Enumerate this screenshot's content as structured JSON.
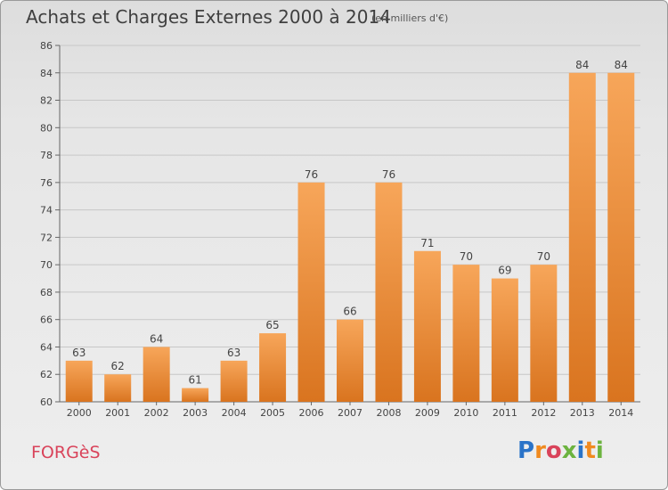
{
  "header": {
    "title": "Achats et Charges Externes 2000 à 2014",
    "subtitle": "(en milliers d'€)"
  },
  "footer": {
    "commune": "FORGèS",
    "logo_letters": [
      "P",
      "r",
      "o",
      "x",
      "i",
      "t",
      "i"
    ],
    "logo_colors": [
      "#2a73c8",
      "#f08a1f",
      "#d9435a",
      "#6cb33f",
      "#2a73c8",
      "#f08a1f",
      "#6cb33f"
    ]
  },
  "colors": {
    "bar_light": "#f7a65a",
    "bar_dark": "#d9741f",
    "grid": "#c7c7c7",
    "axis_text": "#444444"
  },
  "chart_data": {
    "type": "bar",
    "categories": [
      "2000",
      "2001",
      "2002",
      "2003",
      "2004",
      "2005",
      "2006",
      "2007",
      "2008",
      "2009",
      "2010",
      "2011",
      "2012",
      "2013",
      "2014"
    ],
    "values": [
      63,
      62,
      64,
      61,
      63,
      65,
      76,
      66,
      76,
      71,
      70,
      69,
      70,
      84,
      84
    ],
    "ylim": [
      60,
      86
    ],
    "yticks": [
      60,
      62,
      64,
      66,
      68,
      70,
      72,
      74,
      76,
      78,
      80,
      82,
      84,
      86
    ],
    "grid": true,
    "data_labels": true
  }
}
